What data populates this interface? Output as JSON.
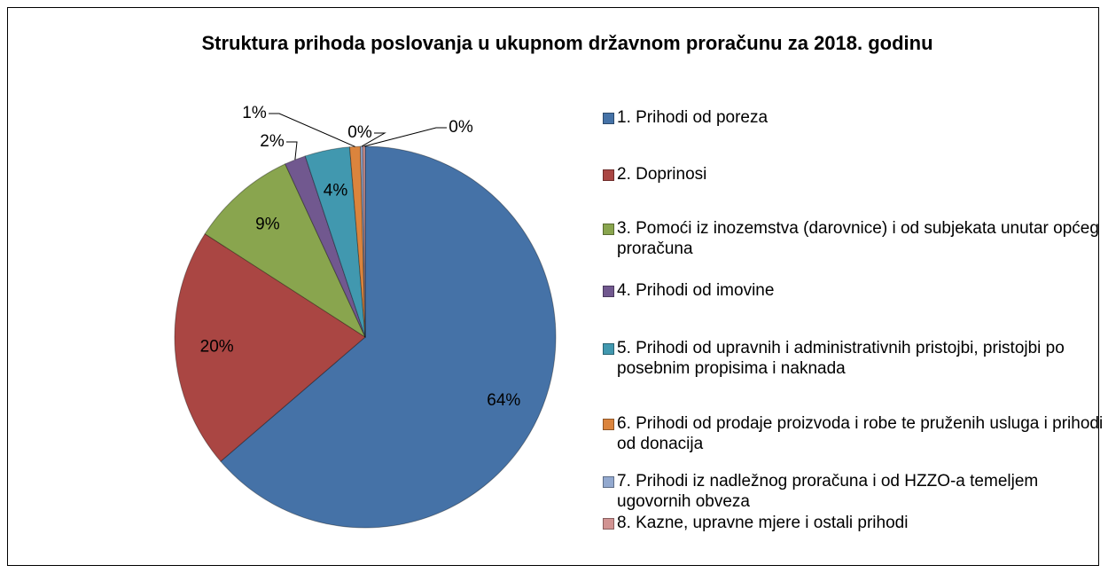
{
  "chart_data": {
    "type": "pie",
    "title": "Struktura prihoda poslovanja u ukupnom državnom proračunu za 2018. godinu",
    "categories": [
      "1. Prihodi od poreza",
      "2. Doprinosi",
      "3. Pomoći iz inozemstva (darovnice) i od subjekata unutar općeg proračuna",
      "4. Prihodi od imovine",
      "5. Prihodi od upravnih i administrativnih pristojbi, pristojbi po posebnim propisima i naknada",
      "6. Prihodi od prodaje proizvoda i robe te pruženih usluga i prihodi od donacija",
      "7. Prihodi iz nadležnog proračuna i od HZZO-a temeljem ugovornih obveza",
      "8. Kazne, upravne mjere i ostali prihodi"
    ],
    "values": [
      63.7,
      20.4,
      9,
      1.8,
      3.8,
      0.9,
      0.2,
      0.2
    ],
    "value_labels": [
      "64%",
      "20%",
      "9%",
      "2%",
      "4%",
      "1%",
      "0%",
      "0%"
    ],
    "colors": [
      "#4572a7",
      "#aa4643",
      "#89a54e",
      "#71588f",
      "#4198af",
      "#db843d",
      "#93a9cf",
      "#d19392"
    ],
    "legend": "right"
  }
}
